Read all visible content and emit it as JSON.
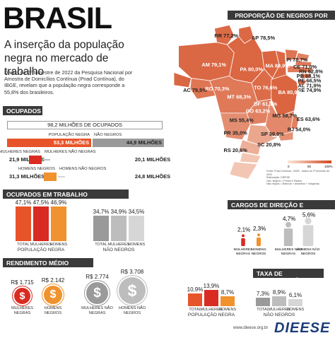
{
  "header": {
    "title": "BRASIL",
    "subtitle": "A inserção da população negra no mercado de trabalho",
    "intro": "Dados do 2º trimestre de 2022 da Pesquisa Nacional por Amostra de Domicílios Contínua (Pnad Contínua), do IBGE, revelam que a população negra corresponde a 55,8% dos brasileiros."
  },
  "sections": {
    "uf": "PROPORÇÃO DE NEGROS POR UF",
    "ocupados": "OCUPADOS",
    "desprotegido": "OCUPADOS EM TRABALHO DESPROTEGIDO",
    "cargos": "CARGOS DE DIREÇÃO E GERÊNCIA",
    "rendimento": "RENDIMENTO MÉDIO MENSAL",
    "taxa": "TAXA DE DESOCUPAÇÃO"
  },
  "chart_data": [
    {
      "type": "map",
      "units": "%",
      "regions": [
        {
          "uf": "RR",
          "value": 77.2,
          "label": "RR 77,2%"
        },
        {
          "uf": "AP",
          "value": 78.5,
          "label": "AP 78,5%"
        },
        {
          "uf": "AM",
          "value": 79.1,
          "label": "AM 79,1%"
        },
        {
          "uf": "PA",
          "value": 80.0,
          "label": "PA 80,0%"
        },
        {
          "uf": "MA",
          "value": 80.9,
          "label": "MA 80,9%"
        },
        {
          "uf": "PI",
          "value": 78.7,
          "label": "PI 78,7%"
        },
        {
          "uf": "CE",
          "value": 71.0,
          "label": "CE 71,0%"
        },
        {
          "uf": "RN",
          "value": 62.8,
          "label": "RN 62,8%"
        },
        {
          "uf": "PB",
          "value": 68.1,
          "label": "PB 68,1%"
        },
        {
          "uf": "PE",
          "value": 66.5,
          "label": "PE 66,5%"
        },
        {
          "uf": "AL",
          "value": 71.9,
          "label": "AL 71,9%"
        },
        {
          "uf": "SE",
          "value": 74.9,
          "label": "SE 74,9%"
        },
        {
          "uf": "AC",
          "value": 79.5,
          "label": "AC 79,5%"
        },
        {
          "uf": "RO",
          "value": 70.3,
          "label": "RO 70,3%"
        },
        {
          "uf": "TO",
          "value": 76.6,
          "label": "TO 76,6%"
        },
        {
          "uf": "BA",
          "value": 80.9,
          "label": "BA 80,9%"
        },
        {
          "uf": "MT",
          "value": 68.3,
          "label": "MT 68,3%"
        },
        {
          "uf": "DF",
          "value": 61.1,
          "label": "DF 61,1%"
        },
        {
          "uf": "GO",
          "value": 63.2,
          "label": "GO 63,2%"
        },
        {
          "uf": "MG",
          "value": 58.7,
          "label": "MG 58,7%"
        },
        {
          "uf": "MS",
          "value": 55.4,
          "label": "MS 55,4%"
        },
        {
          "uf": "ES",
          "value": 63.6,
          "label": "ES 63,6%"
        },
        {
          "uf": "RJ",
          "value": 54.0,
          "label": "RJ 54,0%"
        },
        {
          "uf": "SP",
          "value": 39.9,
          "label": "SP 39,9%"
        },
        {
          "uf": "PR",
          "value": 35.0,
          "label": "PR 35,0%"
        },
        {
          "uf": "SC",
          "value": 20.8,
          "label": "SC 20,8%"
        },
        {
          "uf": "RS",
          "value": 20.6,
          "label": "RS 20,6%"
        }
      ],
      "legend": {
        "ticks": [
          "0",
          "50",
          "100%"
        ]
      },
      "notes": [
        "Fonte: Pnad Contínua - IBGE - dados do 2º trimestre de 2022",
        "Elaboração: DIEESE",
        "Obs. Negros = Pretos e Pardos",
        "Não negros = Brancos + Amarelos + Indígenas"
      ]
    },
    {
      "type": "bar",
      "title": "OCUPADOS",
      "total": "98,2 MILHÕES DE OCUPADOS",
      "rows": [
        {
          "left_label": "POPULAÇÃO NEGRA",
          "left_value": 53.3,
          "left_text": "53,3 MILHÕES",
          "right_label": "NÃO NEGROS",
          "right_value": 44.9,
          "right_text": "44,9 MILHÕES"
        },
        {
          "left_label": "MULHERES NEGRAS",
          "left_value": 21.9,
          "left_text": "21,9 MILHÕES",
          "right_label": "MULHERES NÃO NEGRAS",
          "right_value": 20.1,
          "right_text": "20,1 MILHÕES"
        },
        {
          "left_label": "HOMENS NEGROS",
          "left_value": 31.3,
          "left_text": "31,3 MILHÕES",
          "right_label": "HOMENS NÃO NEGROS",
          "right_value": 24.8,
          "right_text": "24,8 MILHÕES"
        }
      ]
    },
    {
      "type": "bar",
      "title": "OCUPADOS EM TRABALHO DESPROTEGIDO",
      "groups": [
        {
          "name": "POPULAÇÃO NEGRA",
          "categories": [
            "TOTAL",
            "MULHERES",
            "HOMENS"
          ],
          "values": [
            47.1,
            47.5,
            46.9
          ],
          "labels": [
            "47,1%",
            "47,5%",
            "46,9%"
          ]
        },
        {
          "name": "NÃO NEGROS",
          "categories": [
            "TOTAL",
            "MULHERES",
            "HOMENS"
          ],
          "values": [
            34.7,
            34.9,
            34.5
          ],
          "labels": [
            "34,7%",
            "34,9%",
            "34,5%"
          ]
        }
      ]
    },
    {
      "type": "bar",
      "title": "CARGOS DE DIREÇÃO E GERÊNCIA",
      "categories": [
        "MULHERES NEGRAS",
        "HOMENS NEGROS",
        "MULHERES NÃO NEGRAS",
        "HOMENS NÃO NEGROS"
      ],
      "values": [
        2.1,
        2.3,
        4.7,
        5.6
      ],
      "labels": [
        "2,1%",
        "2,3%",
        "4,7%",
        "5,6%"
      ]
    },
    {
      "type": "bar",
      "title": "RENDIMENTO MÉDIO MENSAL",
      "categories": [
        "MULHERES NEGRAS",
        "HOMENS NEGROS",
        "MULHERES NÃO NEGRAS",
        "HOMENS NÃO NEGROS"
      ],
      "values": [
        1715,
        2142,
        2774,
        3708
      ],
      "labels": [
        "R$ 1.715",
        "R$ 2.142",
        "R$ 2.774",
        "R$ 3.708"
      ]
    },
    {
      "type": "bar",
      "title": "TAXA DE DESOCUPAÇÃO",
      "groups": [
        {
          "name": "POPULAÇÃO NEGRA",
          "categories": [
            "TOTAL",
            "MULHERES",
            "HOMENS"
          ],
          "values": [
            10.9,
            13.9,
            8.7
          ],
          "labels": [
            "10,9%",
            "13,9%",
            "8,7%"
          ]
        },
        {
          "name": "NÃO NEGROS",
          "categories": [
            "TOTAL",
            "MULHERES",
            "HOMENS"
          ],
          "values": [
            7.3,
            8.9,
            6.1
          ],
          "labels": [
            "7,3%",
            "8,9%",
            "6,1%"
          ]
        }
      ]
    }
  ],
  "footer": {
    "url": "www.dieese.org.br",
    "logo": "DIEESE"
  },
  "colors": {
    "negra_total": "#e8542a",
    "negra_mulheres": "#d92b22",
    "negra_homens": "#f0922e",
    "naonegro_total": "#9a9a9a",
    "naonegro_mulheres": "#bdbdbd",
    "naonegro_homens": "#d6d6d6",
    "map_low": "#f9dcc8",
    "map_high": "#d2461c"
  }
}
